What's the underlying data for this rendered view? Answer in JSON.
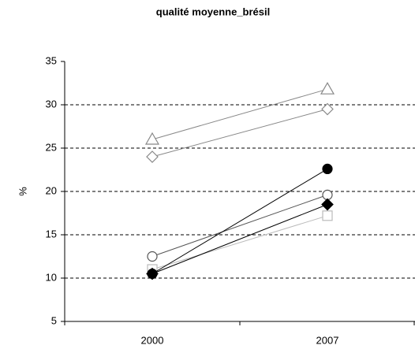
{
  "chart_data": {
    "type": "line",
    "title": "qualité moyenne_brésil",
    "y_label": "%",
    "categories": [
      "2000",
      "2007"
    ],
    "ylim": [
      5,
      35
    ],
    "yticks": [
      5,
      10,
      15,
      20,
      25,
      30,
      35
    ],
    "grid": true,
    "series": [
      {
        "color": "#888888",
        "marker": "triangle",
        "filled": false,
        "values": [
          26,
          31.8
        ]
      },
      {
        "color": "#888888",
        "marker": "diamond",
        "filled": false,
        "values": [
          24,
          29.5
        ]
      },
      {
        "color": "#bbbbbb",
        "marker": "square",
        "filled": false,
        "values": [
          11,
          17.2
        ]
      },
      {
        "color": "#555555",
        "marker": "circle",
        "filled": false,
        "values": [
          12.5,
          19.6
        ]
      },
      {
        "color": "#000000",
        "marker": "diamond",
        "filled": true,
        "values": [
          10.5,
          18.5
        ]
      },
      {
        "color": "#000000",
        "marker": "circle",
        "filled": true,
        "values": [
          10.5,
          22.6
        ]
      }
    ]
  }
}
